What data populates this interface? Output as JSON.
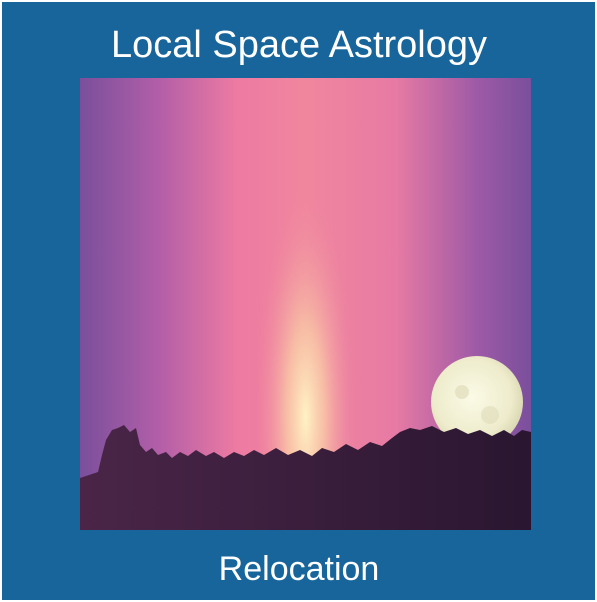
{
  "title": "Local Space Astrology",
  "subtitle": "Relocation"
}
